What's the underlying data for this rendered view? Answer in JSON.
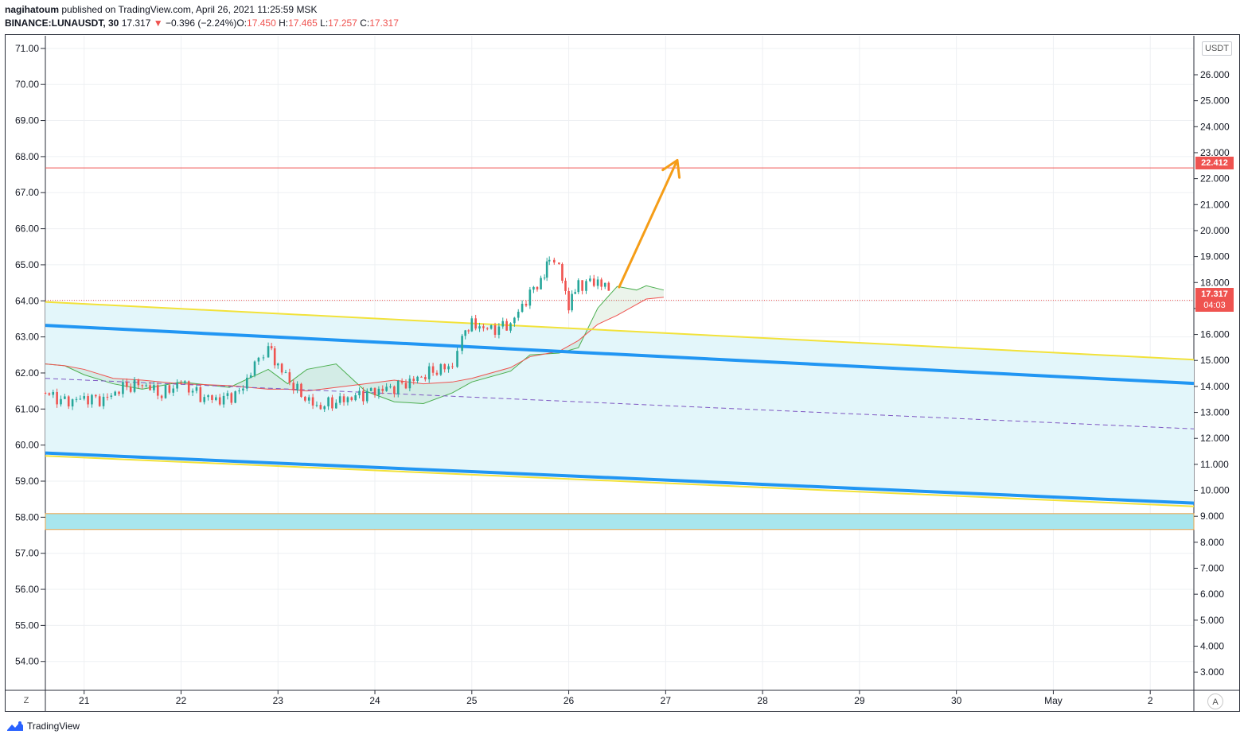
{
  "header": {
    "author": "nagihatoum",
    "published_text": "published on TradingView.com, April 26, 2021 11:25:59 MSK",
    "symbol": "BINANCE:LUNAUSDT, 30",
    "last": "17.317",
    "arrow": "▼",
    "change": "−0.396 (−2.24%)",
    "o_label": "O:",
    "o_value": "17.450",
    "h_label": "H:",
    "h_value": "17.465",
    "l_label": "L:",
    "l_value": "17.257",
    "c_label": "C:",
    "c_value": "17.317"
  },
  "chart_data": {
    "type": "candlestick",
    "currency_label": "USDT",
    "left_axis": {
      "ticks": [
        "71.00",
        "70.00",
        "69.00",
        "68.00",
        "67.00",
        "66.00",
        "65.00",
        "64.00",
        "63.00",
        "62.00",
        "61.00",
        "60.00",
        "59.00",
        "58.00",
        "57.00",
        "56.00",
        "55.00",
        "54.00"
      ],
      "range": [
        53.2,
        71.35
      ]
    },
    "right_axis": {
      "ticks": [
        "26.000",
        "25.000",
        "24.000",
        "23.000",
        "22.000",
        "21.000",
        "20.000",
        "19.000",
        "18.000",
        "17.000",
        "16.000",
        "15.000",
        "14.000",
        "13.000",
        "12.000",
        "11.000",
        "10.000",
        "9.000",
        "8.000",
        "7.000",
        "6.000",
        "5.000",
        "4.000",
        "3.000"
      ],
      "range": [
        2.3,
        27.5
      ]
    },
    "x_axis": {
      "ticks": [
        "21",
        "22",
        "23",
        "24",
        "25",
        "26",
        "27",
        "28",
        "29",
        "30",
        "May",
        "2"
      ],
      "range_days": [
        20.6,
        32.45
      ]
    },
    "price_line": {
      "value": "22.412",
      "color": "#ef5350"
    },
    "last_price": {
      "value": "17.317",
      "countdown": "04:03",
      "color": "#ef5350"
    },
    "channel_lines": [
      {
        "name": "upper-yellow",
        "color": "#f2e23a",
        "points": [
          [
            20.6,
            63.97
          ],
          [
            32.45,
            62.37
          ]
        ]
      },
      {
        "name": "upper-blue",
        "color": "#2196f3",
        "points": [
          [
            20.6,
            63.32
          ],
          [
            32.45,
            61.71
          ]
        ]
      },
      {
        "name": "mid-dashed",
        "color": "#7e57c2",
        "points": [
          [
            20.6,
            61.85
          ],
          [
            32.45,
            60.45
          ]
        ]
      },
      {
        "name": "lower-blue",
        "color": "#2196f3",
        "points": [
          [
            20.6,
            59.78
          ],
          [
            32.45,
            58.39
          ]
        ]
      },
      {
        "name": "lower-yellow",
        "color": "#f2e23a",
        "points": [
          [
            20.6,
            59.7
          ],
          [
            32.45,
            58.3
          ]
        ]
      }
    ],
    "support_zone": {
      "from": 57.66,
      "to": 58.1,
      "color": "#a8e6ee"
    },
    "projection_arrow": {
      "from": [
        26.52,
        64.38
      ],
      "to": [
        27.12,
        67.9
      ],
      "color": "#f59d17"
    },
    "candles_summary": [
      [
        20.6,
        61.45
      ],
      [
        20.8,
        61.2
      ],
      [
        21.0,
        61.3
      ],
      [
        21.2,
        61.25
      ],
      [
        21.4,
        61.6
      ],
      [
        21.6,
        61.7
      ],
      [
        21.8,
        61.4
      ],
      [
        22.0,
        61.75
      ],
      [
        22.2,
        61.35
      ],
      [
        22.4,
        61.25
      ],
      [
        22.6,
        61.45
      ],
      [
        22.8,
        62.4
      ],
      [
        22.9,
        62.75
      ],
      [
        23.0,
        62.2
      ],
      [
        23.2,
        61.5
      ],
      [
        23.4,
        61.05
      ],
      [
        23.6,
        61.2
      ],
      [
        23.8,
        61.35
      ],
      [
        24.0,
        61.5
      ],
      [
        24.2,
        61.6
      ],
      [
        24.4,
        61.8
      ],
      [
        24.6,
        62.05
      ],
      [
        24.8,
        62.2
      ],
      [
        24.9,
        63.1
      ],
      [
        25.0,
        63.35
      ],
      [
        25.2,
        63.2
      ],
      [
        25.4,
        63.35
      ],
      [
        25.6,
        64.2
      ],
      [
        25.75,
        64.7
      ],
      [
        25.8,
        65.15
      ],
      [
        25.9,
        64.9
      ],
      [
        26.0,
        63.9
      ],
      [
        26.1,
        64.45
      ],
      [
        26.3,
        64.55
      ],
      [
        26.45,
        64.2
      ]
    ],
    "ichimoku_visible": true
  },
  "footer": {
    "brand": "TradingView"
  },
  "controls": {
    "z": "Z",
    "a": "A"
  }
}
